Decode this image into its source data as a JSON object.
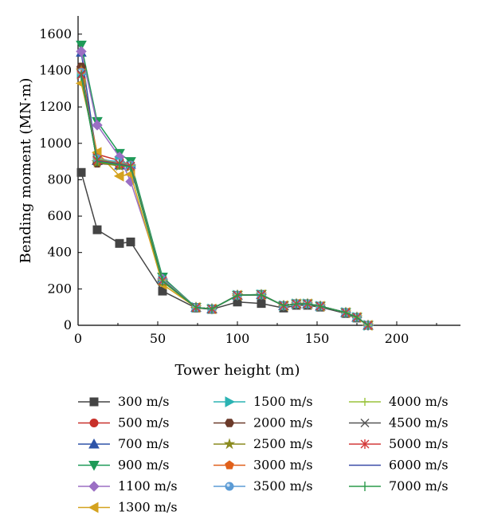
{
  "chart_data": {
    "type": "line",
    "title": "",
    "xlabel": "Tower height (m)",
    "ylabel": "Bending moment (MN·m)",
    "xlim": [
      0,
      240
    ],
    "ylim": [
      0,
      1700
    ],
    "xticks": [
      0,
      50,
      100,
      150,
      200
    ],
    "yticks": [
      0,
      200,
      400,
      600,
      800,
      1000,
      1200,
      1400,
      1600
    ],
    "grid": false,
    "legend_position": "bottom",
    "series": [
      {
        "name": "300 m/s",
        "color": "#444444",
        "marker": "square",
        "points": [
          [
            2,
            840
          ],
          [
            12,
            525
          ],
          [
            26,
            450
          ],
          [
            33,
            458
          ],
          [
            53,
            188
          ],
          [
            74,
            95
          ],
          [
            84,
            88
          ],
          [
            100,
            128
          ],
          [
            115,
            120
          ],
          [
            129,
            95
          ],
          [
            137,
            110
          ],
          [
            144,
            110
          ],
          [
            152,
            100
          ],
          [
            168,
            65
          ],
          [
            175,
            40
          ],
          [
            182,
            0
          ]
        ]
      },
      {
        "name": "500 m/s",
        "color": "#c8302a",
        "marker": "circle",
        "points": [
          [
            2,
            1410
          ],
          [
            12,
            940
          ],
          [
            26,
            905
          ],
          [
            33,
            880
          ],
          [
            53,
            255
          ],
          [
            74,
            98
          ],
          [
            84,
            90
          ],
          [
            100,
            165
          ],
          [
            115,
            168
          ],
          [
            129,
            108
          ],
          [
            137,
            118
          ],
          [
            144,
            118
          ],
          [
            152,
            105
          ],
          [
            168,
            70
          ],
          [
            175,
            44
          ],
          [
            182,
            0
          ]
        ]
      },
      {
        "name": "700 m/s",
        "color": "#2e54a8",
        "marker": "triangle-up",
        "points": [
          [
            2,
            1500
          ],
          [
            12,
            905
          ],
          [
            26,
            880
          ],
          [
            33,
            885
          ],
          [
            53,
            260
          ],
          [
            74,
            98
          ],
          [
            84,
            90
          ],
          [
            100,
            165
          ],
          [
            115,
            168
          ],
          [
            129,
            108
          ],
          [
            137,
            118
          ],
          [
            144,
            118
          ],
          [
            152,
            105
          ],
          [
            168,
            70
          ],
          [
            175,
            44
          ],
          [
            182,
            0
          ]
        ]
      },
      {
        "name": "900 m/s",
        "color": "#1e9a58",
        "marker": "triangle-down",
        "points": [
          [
            2,
            1540
          ],
          [
            12,
            1120
          ],
          [
            26,
            945
          ],
          [
            33,
            900
          ],
          [
            53,
            265
          ],
          [
            74,
            98
          ],
          [
            84,
            90
          ],
          [
            100,
            165
          ],
          [
            115,
            170
          ],
          [
            129,
            108
          ],
          [
            137,
            118
          ],
          [
            144,
            118
          ],
          [
            152,
            105
          ],
          [
            168,
            70
          ],
          [
            175,
            44
          ],
          [
            182,
            0
          ]
        ]
      },
      {
        "name": "1100 m/s",
        "color": "#9b6fc4",
        "marker": "diamond",
        "points": [
          [
            2,
            1505
          ],
          [
            12,
            1100
          ],
          [
            26,
            925
          ],
          [
            33,
            790
          ],
          [
            53,
            255
          ],
          [
            74,
            98
          ],
          [
            84,
            90
          ],
          [
            100,
            165
          ],
          [
            115,
            168
          ],
          [
            129,
            108
          ],
          [
            137,
            118
          ],
          [
            144,
            118
          ],
          [
            152,
            105
          ],
          [
            168,
            70
          ],
          [
            175,
            44
          ],
          [
            182,
            0
          ]
        ]
      },
      {
        "name": "1300 m/s",
        "color": "#d4a21e",
        "marker": "triangle-left",
        "points": [
          [
            2,
            1330
          ],
          [
            12,
            950
          ],
          [
            26,
            820
          ],
          [
            33,
            830
          ],
          [
            53,
            225
          ],
          [
            74,
            98
          ],
          [
            84,
            90
          ],
          [
            100,
            165
          ],
          [
            115,
            168
          ],
          [
            129,
            108
          ],
          [
            137,
            118
          ],
          [
            144,
            118
          ],
          [
            152,
            105
          ],
          [
            168,
            70
          ],
          [
            175,
            44
          ],
          [
            182,
            0
          ]
        ]
      },
      {
        "name": "1500 m/s",
        "color": "#2bb3b3",
        "marker": "triangle-right",
        "points": [
          [
            2,
            1380
          ],
          [
            12,
            910
          ],
          [
            26,
            900
          ],
          [
            33,
            875
          ],
          [
            53,
            250
          ],
          [
            74,
            98
          ],
          [
            84,
            90
          ],
          [
            100,
            165
          ],
          [
            115,
            168
          ],
          [
            129,
            108
          ],
          [
            137,
            118
          ],
          [
            144,
            118
          ],
          [
            152,
            105
          ],
          [
            168,
            70
          ],
          [
            175,
            44
          ],
          [
            182,
            0
          ]
        ]
      },
      {
        "name": "2000 m/s",
        "color": "#6b3a2a",
        "marker": "hexagon",
        "points": [
          [
            2,
            1420
          ],
          [
            12,
            890
          ],
          [
            26,
            880
          ],
          [
            33,
            880
          ],
          [
            53,
            245
          ],
          [
            74,
            98
          ],
          [
            84,
            90
          ],
          [
            100,
            165
          ],
          [
            115,
            168
          ],
          [
            129,
            108
          ],
          [
            137,
            118
          ],
          [
            144,
            118
          ],
          [
            152,
            105
          ],
          [
            168,
            70
          ],
          [
            175,
            44
          ],
          [
            182,
            0
          ]
        ]
      },
      {
        "name": "2500 m/s",
        "color": "#8a8a1e",
        "marker": "star",
        "points": [
          [
            2,
            1400
          ],
          [
            12,
            895
          ],
          [
            26,
            875
          ],
          [
            33,
            872
          ],
          [
            53,
            240
          ],
          [
            74,
            98
          ],
          [
            84,
            90
          ],
          [
            100,
            165
          ],
          [
            115,
            168
          ],
          [
            129,
            108
          ],
          [
            137,
            118
          ],
          [
            144,
            118
          ],
          [
            152,
            105
          ],
          [
            168,
            70
          ],
          [
            175,
            44
          ],
          [
            182,
            0
          ]
        ]
      },
      {
        "name": "3000 m/s",
        "color": "#e0601a",
        "marker": "pentagon",
        "points": [
          [
            2,
            1395
          ],
          [
            12,
            920
          ],
          [
            26,
            890
          ],
          [
            33,
            878
          ],
          [
            53,
            248
          ],
          [
            74,
            98
          ],
          [
            84,
            90
          ],
          [
            100,
            165
          ],
          [
            115,
            168
          ],
          [
            129,
            108
          ],
          [
            137,
            118
          ],
          [
            144,
            118
          ],
          [
            152,
            105
          ],
          [
            168,
            70
          ],
          [
            175,
            44
          ],
          [
            182,
            0
          ]
        ]
      },
      {
        "name": "3500 m/s",
        "color": "#5b9bd5",
        "marker": "sphere",
        "points": [
          [
            2,
            1390
          ],
          [
            12,
            915
          ],
          [
            26,
            895
          ],
          [
            33,
            880
          ],
          [
            53,
            250
          ],
          [
            74,
            98
          ],
          [
            84,
            90
          ],
          [
            100,
            165
          ],
          [
            115,
            168
          ],
          [
            129,
            108
          ],
          [
            137,
            118
          ],
          [
            144,
            118
          ],
          [
            152,
            105
          ],
          [
            168,
            70
          ],
          [
            175,
            44
          ],
          [
            182,
            0
          ]
        ]
      },
      {
        "name": "4000 m/s",
        "color": "#9ac43c",
        "marker": "plus",
        "points": [
          [
            2,
            1385
          ],
          [
            12,
            912
          ],
          [
            26,
            890
          ],
          [
            33,
            878
          ],
          [
            53,
            248
          ],
          [
            74,
            98
          ],
          [
            84,
            90
          ],
          [
            100,
            165
          ],
          [
            115,
            168
          ],
          [
            129,
            108
          ],
          [
            137,
            118
          ],
          [
            144,
            118
          ],
          [
            152,
            105
          ],
          [
            168,
            70
          ],
          [
            175,
            44
          ],
          [
            182,
            0
          ]
        ]
      },
      {
        "name": "4500 m/s",
        "color": "#555555",
        "marker": "x",
        "points": [
          [
            2,
            1380
          ],
          [
            12,
            908
          ],
          [
            26,
            888
          ],
          [
            33,
            876
          ],
          [
            53,
            246
          ],
          [
            74,
            98
          ],
          [
            84,
            90
          ],
          [
            100,
            165
          ],
          [
            115,
            168
          ],
          [
            129,
            108
          ],
          [
            137,
            118
          ],
          [
            144,
            118
          ],
          [
            152,
            105
          ],
          [
            168,
            70
          ],
          [
            175,
            44
          ],
          [
            182,
            0
          ]
        ]
      },
      {
        "name": "5000 m/s",
        "color": "#d43a3a",
        "marker": "asterisk",
        "points": [
          [
            2,
            1375
          ],
          [
            12,
            905
          ],
          [
            26,
            886
          ],
          [
            33,
            874
          ],
          [
            53,
            245
          ],
          [
            74,
            98
          ],
          [
            84,
            90
          ],
          [
            100,
            165
          ],
          [
            115,
            168
          ],
          [
            129,
            108
          ],
          [
            137,
            118
          ],
          [
            144,
            118
          ],
          [
            152,
            105
          ],
          [
            168,
            70
          ],
          [
            175,
            44
          ],
          [
            182,
            0
          ]
        ]
      },
      {
        "name": "6000 m/s",
        "color": "#3a4aa8",
        "marker": "none",
        "points": [
          [
            2,
            1372
          ],
          [
            12,
            902
          ],
          [
            26,
            884
          ],
          [
            33,
            872
          ],
          [
            53,
            244
          ],
          [
            74,
            98
          ],
          [
            84,
            90
          ],
          [
            100,
            165
          ],
          [
            115,
            168
          ],
          [
            129,
            108
          ],
          [
            137,
            118
          ],
          [
            144,
            118
          ],
          [
            152,
            105
          ],
          [
            168,
            70
          ],
          [
            175,
            44
          ],
          [
            182,
            0
          ]
        ]
      },
      {
        "name": "7000 m/s",
        "color": "#2a9a4a",
        "marker": "vbar",
        "points": [
          [
            2,
            1370
          ],
          [
            12,
            900
          ],
          [
            26,
            882
          ],
          [
            33,
            870
          ],
          [
            53,
            243
          ],
          [
            74,
            98
          ],
          [
            84,
            90
          ],
          [
            100,
            165
          ],
          [
            115,
            168
          ],
          [
            129,
            108
          ],
          [
            137,
            118
          ],
          [
            144,
            118
          ],
          [
            152,
            105
          ],
          [
            168,
            70
          ],
          [
            175,
            44
          ],
          [
            182,
            0
          ]
        ]
      }
    ]
  }
}
